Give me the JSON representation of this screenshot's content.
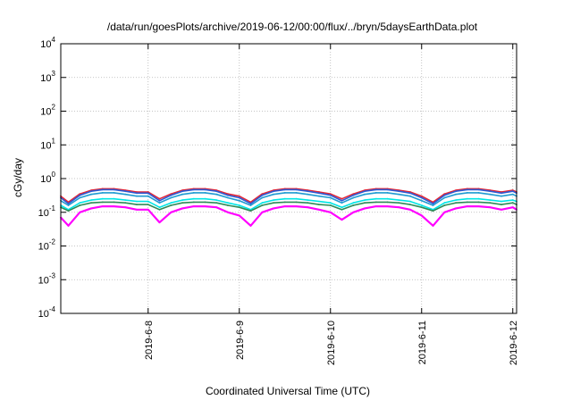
{
  "chart_data": {
    "type": "line",
    "title": "/data/run/goesPlots/archive/2019-06-12/00:00/flux/../bryn/5daysEarthData.plot",
    "xlabel": "Coordinated Universal Time (UTC)",
    "ylabel": "cGy/day",
    "yscale": "log",
    "ylim": [
      0.0001,
      10000
    ],
    "y_ticks": [
      {
        "base": "10",
        "exp": "-4",
        "value": 0.0001
      },
      {
        "base": "10",
        "exp": "-3",
        "value": 0.001
      },
      {
        "base": "10",
        "exp": "-2",
        "value": 0.01
      },
      {
        "base": "10",
        "exp": "-1",
        "value": 0.1
      },
      {
        "base": "10",
        "exp": "0",
        "value": 1
      },
      {
        "base": "10",
        "exp": "1",
        "value": 10
      },
      {
        "base": "10",
        "exp": "2",
        "value": 100
      },
      {
        "base": "10",
        "exp": "3",
        "value": 1000
      },
      {
        "base": "10",
        "exp": "4",
        "value": 10000
      }
    ],
    "xlim": [
      "2019-06-07 01:00",
      "2019-06-12 01:00"
    ],
    "x_ticks": [
      {
        "label": "2019-6-8",
        "value": "2019-06-08 00:00"
      },
      {
        "label": "2019-6-9",
        "value": "2019-06-09 00:00"
      },
      {
        "label": "2019-6-10",
        "value": "2019-06-10 00:00"
      },
      {
        "label": "2019-6-11",
        "value": "2019-06-11 00:00"
      },
      {
        "label": "2019-6-12",
        "value": "2019-06-12 00:00"
      }
    ],
    "grid": true,
    "x": [
      "2019-06-07 01:00",
      "2019-06-07 03:00",
      "2019-06-07 06:00",
      "2019-06-07 09:00",
      "2019-06-07 12:00",
      "2019-06-07 15:00",
      "2019-06-07 18:00",
      "2019-06-07 21:00",
      "2019-06-08 00:00",
      "2019-06-08 03:00",
      "2019-06-08 06:00",
      "2019-06-08 09:00",
      "2019-06-08 12:00",
      "2019-06-08 15:00",
      "2019-06-08 18:00",
      "2019-06-08 21:00",
      "2019-06-09 00:00",
      "2019-06-09 03:00",
      "2019-06-09 06:00",
      "2019-06-09 09:00",
      "2019-06-09 12:00",
      "2019-06-09 15:00",
      "2019-06-09 18:00",
      "2019-06-09 21:00",
      "2019-06-10 00:00",
      "2019-06-10 03:00",
      "2019-06-10 06:00",
      "2019-06-10 09:00",
      "2019-06-10 12:00",
      "2019-06-10 15:00",
      "2019-06-10 18:00",
      "2019-06-10 21:00",
      "2019-06-11 00:00",
      "2019-06-11 03:00",
      "2019-06-11 06:00",
      "2019-06-11 09:00",
      "2019-06-11 12:00",
      "2019-06-11 15:00",
      "2019-06-11 18:00",
      "2019-06-11 21:00",
      "2019-06-12 00:00",
      "2019-06-12 01:00"
    ],
    "series": [
      {
        "color": "#e32636",
        "values": [
          0.3,
          0.2,
          0.35,
          0.45,
          0.5,
          0.5,
          0.45,
          0.4,
          0.4,
          0.25,
          0.35,
          0.45,
          0.5,
          0.5,
          0.45,
          0.35,
          0.3,
          0.2,
          0.35,
          0.45,
          0.5,
          0.5,
          0.45,
          0.4,
          0.35,
          0.25,
          0.35,
          0.45,
          0.5,
          0.5,
          0.45,
          0.4,
          0.3,
          0.2,
          0.35,
          0.45,
          0.5,
          0.5,
          0.45,
          0.4,
          0.45,
          0.4
        ]
      },
      {
        "color": "#2a5cd6",
        "values": [
          0.27,
          0.18,
          0.32,
          0.42,
          0.47,
          0.47,
          0.42,
          0.37,
          0.37,
          0.22,
          0.32,
          0.42,
          0.47,
          0.47,
          0.42,
          0.32,
          0.27,
          0.18,
          0.32,
          0.42,
          0.47,
          0.47,
          0.42,
          0.37,
          0.32,
          0.22,
          0.32,
          0.42,
          0.47,
          0.47,
          0.42,
          0.37,
          0.27,
          0.18,
          0.32,
          0.42,
          0.47,
          0.47,
          0.42,
          0.37,
          0.42,
          0.37
        ]
      },
      {
        "color": "#1f9bd1",
        "values": [
          0.22,
          0.16,
          0.27,
          0.34,
          0.38,
          0.38,
          0.34,
          0.3,
          0.3,
          0.19,
          0.27,
          0.34,
          0.38,
          0.38,
          0.34,
          0.27,
          0.22,
          0.16,
          0.27,
          0.34,
          0.38,
          0.38,
          0.34,
          0.3,
          0.27,
          0.19,
          0.27,
          0.34,
          0.38,
          0.38,
          0.34,
          0.3,
          0.22,
          0.16,
          0.27,
          0.34,
          0.38,
          0.38,
          0.34,
          0.3,
          0.34,
          0.3
        ]
      },
      {
        "color": "#00e5e5",
        "values": [
          0.16,
          0.12,
          0.19,
          0.23,
          0.25,
          0.25,
          0.23,
          0.21,
          0.21,
          0.14,
          0.19,
          0.23,
          0.25,
          0.25,
          0.23,
          0.19,
          0.16,
          0.12,
          0.19,
          0.23,
          0.25,
          0.25,
          0.23,
          0.21,
          0.19,
          0.14,
          0.19,
          0.23,
          0.25,
          0.25,
          0.23,
          0.21,
          0.16,
          0.12,
          0.19,
          0.23,
          0.25,
          0.25,
          0.23,
          0.21,
          0.23,
          0.21
        ]
      },
      {
        "color": "#2e8b57",
        "values": [
          0.14,
          0.11,
          0.16,
          0.19,
          0.2,
          0.2,
          0.19,
          0.17,
          0.17,
          0.12,
          0.16,
          0.19,
          0.2,
          0.2,
          0.19,
          0.16,
          0.14,
          0.11,
          0.16,
          0.19,
          0.2,
          0.2,
          0.19,
          0.17,
          0.16,
          0.12,
          0.16,
          0.19,
          0.2,
          0.2,
          0.19,
          0.17,
          0.14,
          0.11,
          0.16,
          0.19,
          0.2,
          0.2,
          0.19,
          0.17,
          0.19,
          0.17
        ]
      },
      {
        "color": "#ff00ff",
        "values": [
          0.07,
          0.04,
          0.1,
          0.13,
          0.15,
          0.15,
          0.14,
          0.12,
          0.12,
          0.05,
          0.1,
          0.13,
          0.15,
          0.15,
          0.14,
          0.1,
          0.08,
          0.04,
          0.1,
          0.13,
          0.15,
          0.15,
          0.14,
          0.12,
          0.1,
          0.06,
          0.1,
          0.13,
          0.15,
          0.15,
          0.14,
          0.12,
          0.08,
          0.04,
          0.1,
          0.13,
          0.15,
          0.15,
          0.14,
          0.12,
          0.14,
          0.12
        ]
      }
    ]
  }
}
